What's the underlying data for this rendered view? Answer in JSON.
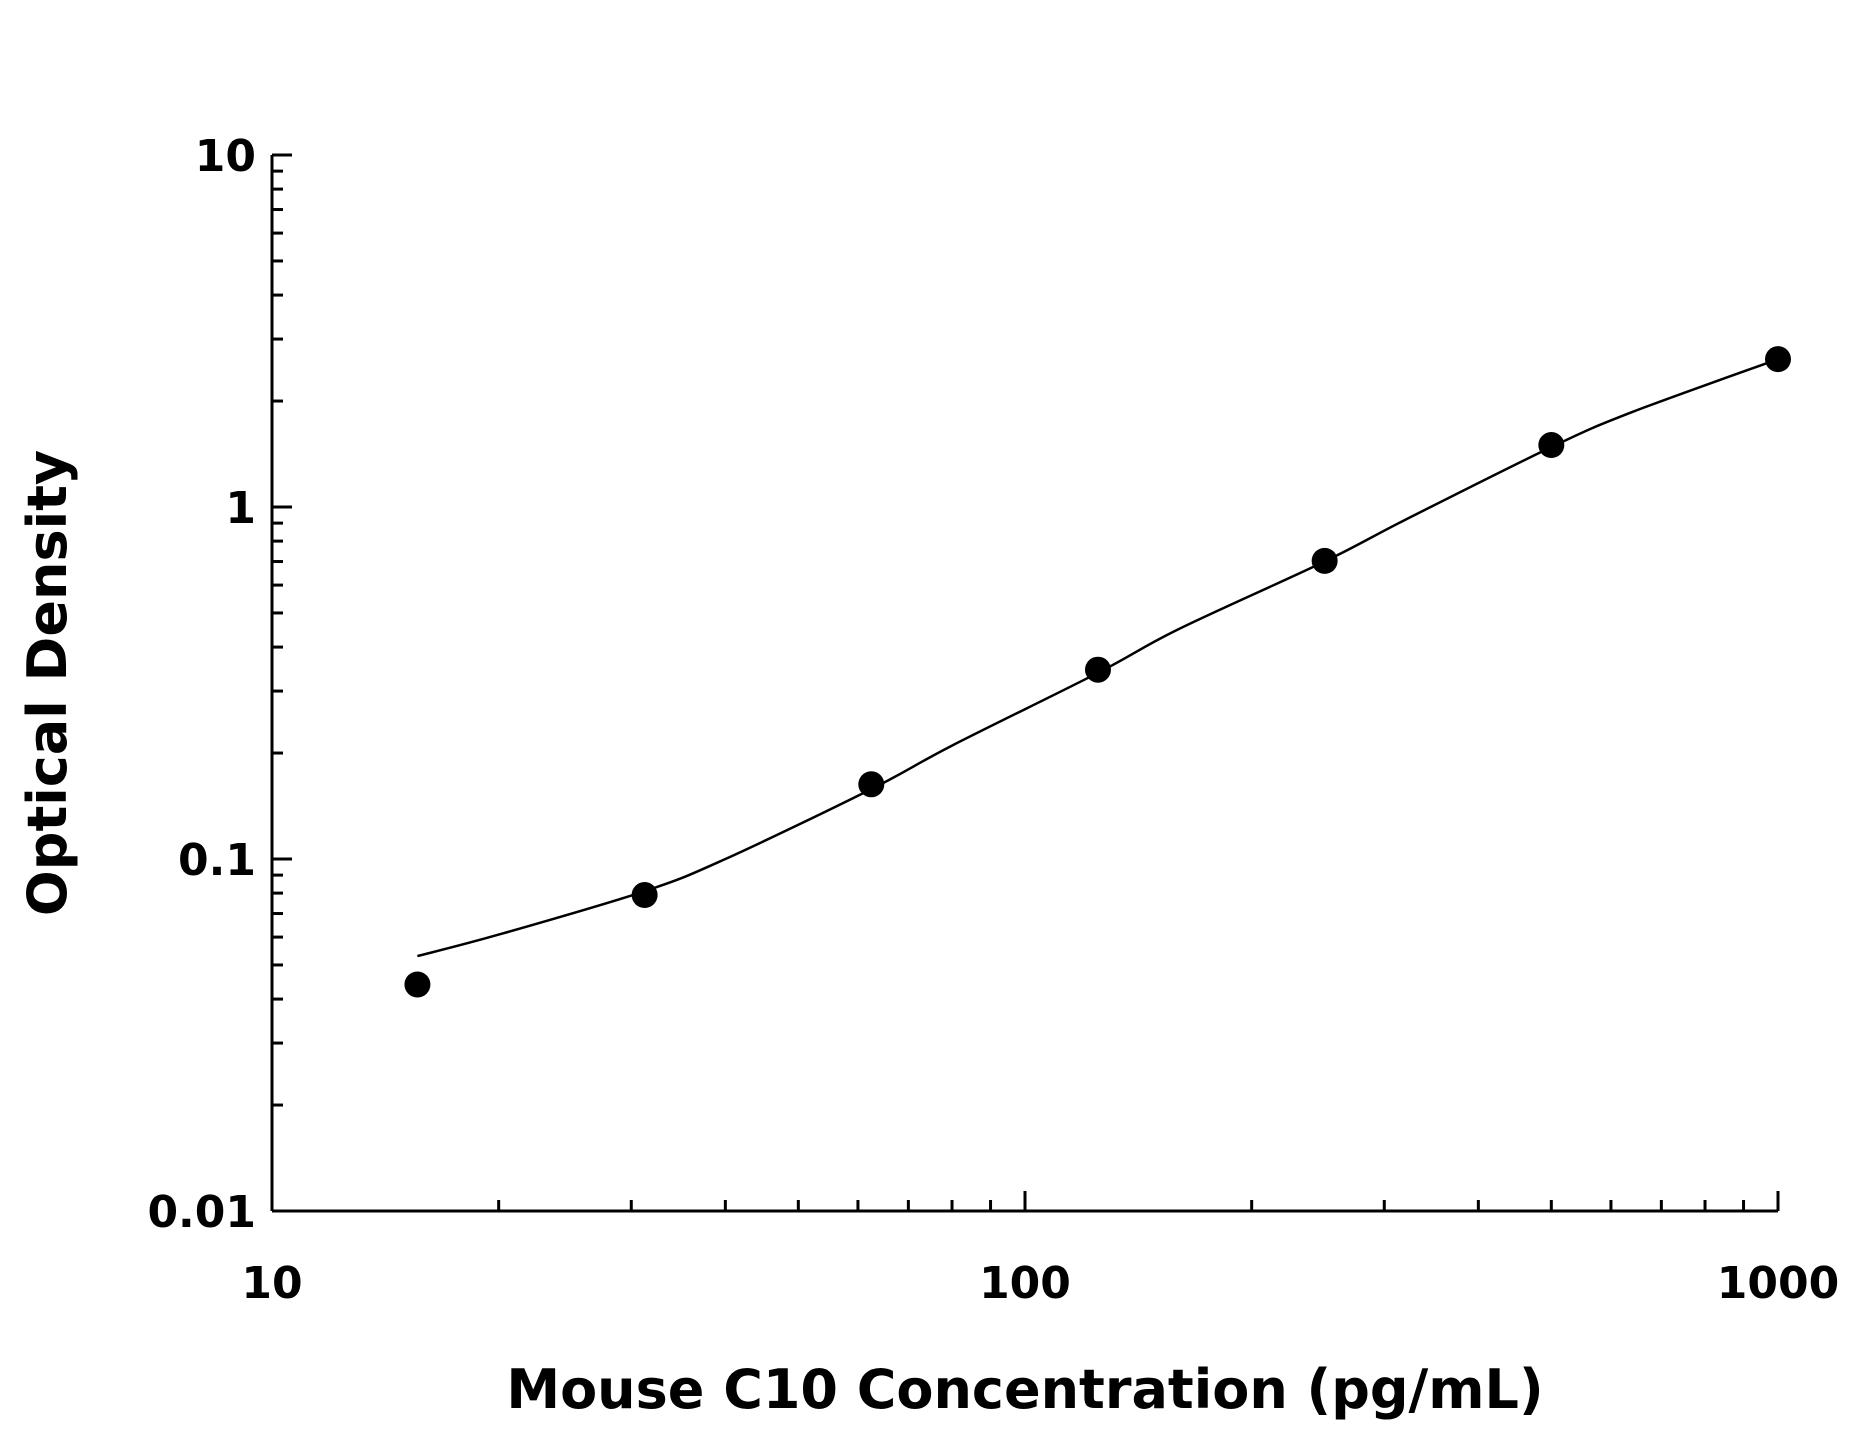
{
  "chart_data": {
    "type": "scatter",
    "xlabel": "Mouse C10 Concentration (pg/mL)",
    "ylabel": "Optical Density",
    "x_scale": "log",
    "y_scale": "log",
    "xlim": [
      10,
      1000
    ],
    "ylim": [
      0.01,
      10
    ],
    "x_ticks": [
      "10",
      "100",
      "1000"
    ],
    "y_ticks": [
      "10",
      "1",
      "0.1",
      "0.01"
    ],
    "grid": false,
    "legend": "none",
    "series": [
      {
        "values_x": [
          15.6,
          31.25,
          62.5,
          125,
          250,
          500,
          1000
        ],
        "values_y": [
          0.044,
          0.079,
          0.163,
          0.345,
          0.703,
          1.5,
          2.63
        ],
        "fit_curve": {
          "x": [
            15.6,
            20,
            31.25,
            40,
            62.5,
            80,
            125,
            160,
            250,
            320,
            500,
            640,
            1000
          ],
          "y": [
            0.053,
            0.061,
            0.081,
            0.1,
            0.158,
            0.21,
            0.338,
            0.45,
            0.7,
            0.92,
            1.48,
            1.86,
            2.63
          ]
        }
      }
    ],
    "colors": {
      "points": "#000000",
      "curve": "#000000",
      "axes": "#000000"
    }
  }
}
